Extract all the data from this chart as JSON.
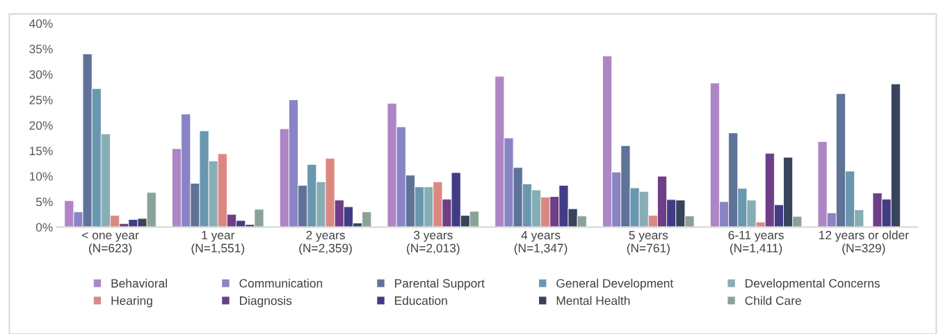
{
  "chart_data": {
    "type": "bar",
    "categories": [
      "< one year\n(N=623)",
      "1 year\n(N=1,551)",
      "2 years\n(N=2,359)",
      "3 years\n(N=2,013)",
      "4 years\n(N=1,347)",
      "5 years\n(N=761)",
      "6-11 years\n(N=1,411)",
      "12 years or older\n(N=329)"
    ],
    "series": [
      {
        "name": "Behavioral",
        "color": "#ae86c4",
        "values": [
          5.2,
          15.4,
          19.3,
          24.3,
          29.6,
          33.6,
          28.3,
          16.8
        ]
      },
      {
        "name": "Communication",
        "color": "#8884c6",
        "values": [
          3.0,
          22.2,
          25.0,
          19.7,
          17.5,
          10.8,
          5.0,
          2.8
        ]
      },
      {
        "name": "Parental Support",
        "color": "#5f7298",
        "values": [
          34.0,
          8.6,
          8.2,
          10.2,
          11.7,
          16.0,
          18.5,
          26.2
        ]
      },
      {
        "name": "General Development",
        "color": "#6a97b0",
        "values": [
          27.2,
          18.9,
          12.3,
          7.9,
          8.5,
          7.7,
          7.6,
          11.0
        ]
      },
      {
        "name": "Developmental Concerns",
        "color": "#87adb5",
        "values": [
          18.3,
          13.0,
          8.9,
          7.9,
          7.3,
          7.0,
          5.3,
          3.4
        ]
      },
      {
        "name": "Hearing",
        "color": "#dc8882",
        "values": [
          2.3,
          14.4,
          13.5,
          8.9,
          5.9,
          2.3,
          1.0,
          null
        ]
      },
      {
        "name": "Diagnosis",
        "color": "#6e3e86",
        "values": [
          0.7,
          2.5,
          5.3,
          5.5,
          6.0,
          10.0,
          14.5,
          6.7
        ]
      },
      {
        "name": "Education",
        "color": "#423c86",
        "values": [
          1.5,
          1.3,
          4.0,
          10.7,
          8.2,
          5.4,
          4.4,
          5.5
        ]
      },
      {
        "name": "Mental Health",
        "color": "#38445c",
        "values": [
          1.7,
          0.5,
          0.8,
          2.3,
          3.6,
          5.3,
          13.7,
          28.1
        ]
      },
      {
        "name": "Child Care",
        "color": "#8aa398",
        "values": [
          6.8,
          3.5,
          3.0,
          3.1,
          2.2,
          2.2,
          2.1,
          null
        ]
      }
    ],
    "ylim": [
      0,
      40
    ],
    "yticks": [
      {
        "value": 0,
        "label": "0%"
      },
      {
        "value": 5,
        "label": "5%"
      },
      {
        "value": 10,
        "label": "10%"
      },
      {
        "value": 15,
        "label": "15%"
      },
      {
        "value": 20,
        "label": "20%"
      },
      {
        "value": 25,
        "label": "25%"
      },
      {
        "value": 30,
        "label": "30%"
      },
      {
        "value": 35,
        "label": "35%"
      },
      {
        "value": 40,
        "label": "40%"
      }
    ],
    "grid": false,
    "legend": "bottom"
  }
}
